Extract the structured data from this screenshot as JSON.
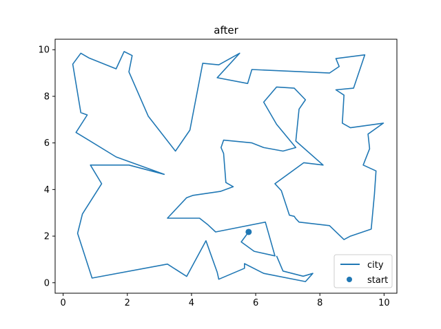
{
  "chart_data": {
    "type": "line",
    "title": "after",
    "xlabel": "",
    "ylabel": "",
    "xlim": [
      -0.25,
      10.4
    ],
    "ylim": [
      -0.45,
      10.45
    ],
    "xticks": [
      0,
      2,
      4,
      6,
      8,
      10
    ],
    "yticks": [
      0,
      2,
      4,
      6,
      8,
      10
    ],
    "grid": false,
    "legend_position": "lower right",
    "series": [
      {
        "name": "city",
        "type": "line",
        "color": "#1f77b4",
        "points": [
          [
            5.78,
            2.18
          ],
          [
            5.55,
            1.75
          ],
          [
            5.95,
            1.35
          ],
          [
            6.6,
            1.15
          ],
          [
            6.3,
            2.6
          ],
          [
            5.2,
            2.3
          ],
          [
            4.75,
            2.18
          ],
          [
            4.5,
            2.5
          ],
          [
            4.25,
            2.77
          ],
          [
            3.25,
            2.77
          ],
          [
            3.85,
            3.65
          ],
          [
            4.05,
            3.75
          ],
          [
            4.9,
            3.92
          ],
          [
            5.3,
            4.12
          ],
          [
            5.07,
            4.3
          ],
          [
            5.0,
            5.55
          ],
          [
            4.92,
            5.8
          ],
          [
            5.0,
            6.12
          ],
          [
            5.88,
            6.0
          ],
          [
            6.25,
            5.8
          ],
          [
            6.85,
            5.65
          ],
          [
            7.25,
            5.8
          ],
          [
            6.65,
            6.8
          ],
          [
            6.25,
            7.75
          ],
          [
            6.65,
            8.4
          ],
          [
            7.2,
            8.35
          ],
          [
            7.55,
            7.85
          ],
          [
            7.35,
            7.45
          ],
          [
            7.25,
            6.08
          ],
          [
            8.1,
            5.05
          ],
          [
            7.5,
            5.15
          ],
          [
            6.6,
            4.25
          ],
          [
            6.8,
            3.95
          ],
          [
            7.05,
            2.9
          ],
          [
            7.2,
            2.85
          ],
          [
            7.25,
            2.75
          ],
          [
            7.35,
            2.6
          ],
          [
            8.3,
            2.45
          ],
          [
            8.75,
            1.85
          ],
          [
            8.95,
            2.0
          ],
          [
            9.6,
            2.3
          ],
          [
            9.7,
            3.8
          ],
          [
            9.75,
            4.8
          ],
          [
            9.35,
            5.05
          ],
          [
            9.55,
            5.75
          ],
          [
            9.5,
            6.38
          ],
          [
            9.98,
            6.85
          ],
          [
            8.95,
            6.65
          ],
          [
            8.7,
            6.85
          ],
          [
            8.75,
            8.05
          ],
          [
            8.5,
            8.28
          ],
          [
            9.05,
            8.35
          ],
          [
            9.4,
            9.78
          ],
          [
            8.5,
            9.62
          ],
          [
            8.6,
            9.28
          ],
          [
            8.3,
            9.0
          ],
          [
            5.88,
            9.15
          ],
          [
            5.75,
            8.55
          ],
          [
            4.8,
            8.8
          ],
          [
            5.5,
            9.85
          ],
          [
            4.85,
            9.35
          ],
          [
            4.35,
            9.42
          ],
          [
            3.95,
            6.55
          ],
          [
            3.5,
            5.65
          ],
          [
            2.65,
            7.15
          ],
          [
            2.05,
            9.05
          ],
          [
            2.15,
            9.75
          ],
          [
            1.9,
            9.92
          ],
          [
            1.65,
            9.18
          ],
          [
            0.8,
            9.65
          ],
          [
            0.55,
            9.85
          ],
          [
            0.3,
            9.38
          ],
          [
            0.55,
            7.3
          ],
          [
            0.75,
            7.2
          ],
          [
            0.4,
            6.45
          ],
          [
            1.65,
            5.4
          ],
          [
            3.15,
            4.65
          ],
          [
            2.05,
            5.05
          ],
          [
            0.85,
            5.05
          ],
          [
            1.2,
            4.25
          ],
          [
            0.6,
            2.95
          ],
          [
            0.45,
            2.12
          ],
          [
            0.9,
            0.2
          ],
          [
            3.25,
            0.8
          ],
          [
            3.85,
            0.27
          ],
          [
            4.45,
            1.8
          ],
          [
            4.8,
            0.45
          ],
          [
            4.85,
            0.15
          ],
          [
            5.65,
            0.62
          ],
          [
            5.65,
            0.82
          ],
          [
            6.25,
            0.4
          ],
          [
            7.55,
            0.05
          ],
          [
            7.78,
            0.4
          ],
          [
            7.48,
            0.28
          ],
          [
            6.85,
            0.5
          ],
          [
            6.65,
            1.15
          ]
        ]
      },
      {
        "name": "start",
        "type": "scatter",
        "color": "#1f77b4",
        "points": [
          [
            5.78,
            2.18
          ]
        ]
      }
    ]
  }
}
